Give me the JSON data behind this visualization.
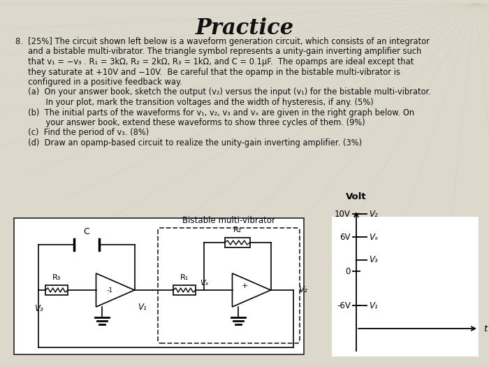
{
  "title": "Practice",
  "bg_color": "#ddd8cc",
  "text_color": "#111111",
  "title_fontsize": 22,
  "body_fontsize": 8.5,
  "line1": "8.  [25%] The circuit shown left below is a waveform generation circuit, which consists of an integrator",
  "line2": "     and a bistable multi-vibrator. The triangle symbol represents a unity-gain inverting amplifier such",
  "line3": "     that v₁ = −v₃ . R₁ = 3kΩ, R₂ = 2kΩ, R₃ = 1kΩ, and C = 0.1μF.  The opamps are ideal except that",
  "line4": "     they saturate at +10V and −10V.  Be careful that the opamp in the bistable multi-vibrator is",
  "line5": "     configured in a positive feedback way.",
  "parta": "     (a)  On your answer book, sketch the output (v₂) versus the input (v₁) for the bistable multi-vibrator.",
  "parta2": "            In your plot, mark the transition voltages and the width of hysteresis, if any. (5%)",
  "partb": "     (b)  The initial parts of the waveforms for v₁, v₂, v₃ and vₓ are given in the right graph below. On",
  "partb2": "            your answer book, extend these waveforms to show three cycles of them. (9%)",
  "partc": "     (c)  Find the period of v₃. (8%)",
  "partd": "     (d)  Draw an opamp-based circuit to realize the unity-gain inverting amplifier. (3%)",
  "bist_label": "Bistable multi-vibrator",
  "volt_label": "Volt",
  "t_label": "t",
  "label_10V": "10V",
  "label_6V": "6V",
  "label_0": "0",
  "label_neg6V": "-6V",
  "label_v2": "V₂",
  "label_vx": "Vₓ",
  "label_v3": "V₃",
  "label_v1": "V₁",
  "R1_label": "R₁",
  "R2_label": "R₂",
  "R3_label": "R₃",
  "C_label": "C",
  "V1_label": "V₁",
  "V2_label": "V₂",
  "V3_label": "V₃",
  "Vx_label": "Vₓ"
}
